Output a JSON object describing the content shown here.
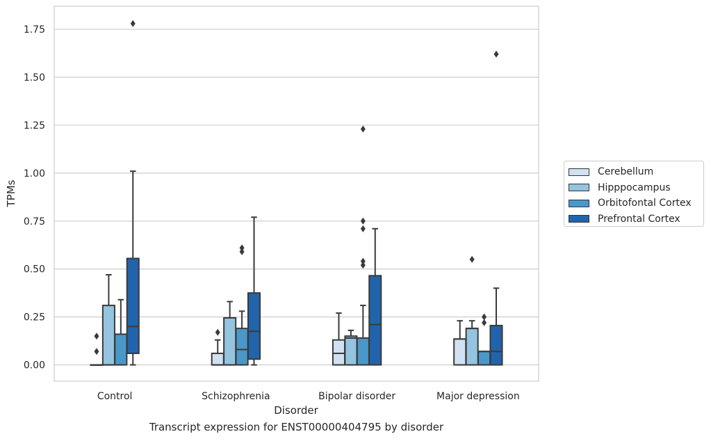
{
  "chart_data": {
    "type": "box",
    "title": "Transcript expression for ENST00000404795 by disorder",
    "xlabel": "Disorder",
    "ylabel": "TPMs",
    "ylim": [
      -0.085,
      1.87
    ],
    "yticks": [
      "0.00",
      "0.25",
      "0.50",
      "0.75",
      "1.00",
      "1.25",
      "1.50",
      "1.75"
    ],
    "grid": "horizontal",
    "legend_position": "right",
    "categories": [
      "Control",
      "Schizophrenia",
      "Bipolar disorder",
      "Major depression"
    ],
    "series": [
      {
        "name": "Cerebellum",
        "color": "#d0e1f2",
        "boxes": [
          {
            "whisker_low": 0.0,
            "q1": 0.0,
            "median": 0.0,
            "q3": 0.0,
            "whisker_high": 0.0,
            "outliers": [
              0.07,
              0.15
            ]
          },
          {
            "whisker_low": 0.0,
            "q1": 0.0,
            "median": 0.0,
            "q3": 0.06,
            "whisker_high": 0.13,
            "outliers": [
              0.17
            ]
          },
          {
            "whisker_low": 0.0,
            "q1": 0.0,
            "median": 0.06,
            "q3": 0.13,
            "whisker_high": 0.27,
            "outliers": []
          },
          {
            "whisker_low": 0.0,
            "q1": 0.0,
            "median": 0.135,
            "q3": 0.135,
            "whisker_high": 0.23,
            "outliers": []
          }
        ]
      },
      {
        "name": "Hipppocampus",
        "color": "#94c4df",
        "boxes": [
          {
            "whisker_low": 0.0,
            "q1": 0.0,
            "median": 0.0,
            "q3": 0.31,
            "whisker_high": 0.47,
            "outliers": []
          },
          {
            "whisker_low": 0.0,
            "q1": 0.0,
            "median": 0.0,
            "q3": 0.245,
            "whisker_high": 0.33,
            "outliers": []
          },
          {
            "whisker_low": 0.0,
            "q1": 0.0,
            "median": 0.14,
            "q3": 0.15,
            "whisker_high": 0.18,
            "outliers": []
          },
          {
            "whisker_low": 0.0,
            "q1": 0.0,
            "median": 0.19,
            "q3": 0.19,
            "whisker_high": 0.23,
            "outliers": [
              0.55
            ]
          }
        ]
      },
      {
        "name": "Orbitofontal Cortex",
        "color": "#4a98c9",
        "boxes": [
          {
            "whisker_low": 0.0,
            "q1": 0.0,
            "median": 0.16,
            "q3": 0.16,
            "whisker_high": 0.34,
            "outliers": []
          },
          {
            "whisker_low": 0.0,
            "q1": 0.0,
            "median": 0.08,
            "q3": 0.19,
            "whisker_high": 0.28,
            "outliers": [
              0.59,
              0.61
            ]
          },
          {
            "whisker_low": 0.0,
            "q1": 0.0,
            "median": 0.14,
            "q3": 0.14,
            "whisker_high": 0.31,
            "outliers": [
              0.52,
              0.54,
              0.71,
              0.75,
              1.23
            ]
          },
          {
            "whisker_low": 0.0,
            "q1": 0.0,
            "median": 0.07,
            "q3": 0.07,
            "whisker_high": 0.07,
            "outliers": [
              0.22,
              0.25
            ]
          }
        ]
      },
      {
        "name": "Prefrontal Cortex",
        "color": "#2164ab",
        "boxes": [
          {
            "whisker_low": 0.0,
            "q1": 0.06,
            "median": 0.2,
            "q3": 0.555,
            "whisker_high": 1.01,
            "outliers": [
              1.78
            ]
          },
          {
            "whisker_low": 0.0,
            "q1": 0.03,
            "median": 0.175,
            "q3": 0.375,
            "whisker_high": 0.77,
            "outliers": []
          },
          {
            "whisker_low": 0.0,
            "q1": 0.0,
            "median": 0.21,
            "q3": 0.465,
            "whisker_high": 0.71,
            "outliers": []
          },
          {
            "whisker_low": 0.0,
            "q1": 0.0,
            "median": 0.07,
            "q3": 0.205,
            "whisker_high": 0.4,
            "outliers": [
              1.62
            ]
          }
        ]
      }
    ]
  }
}
